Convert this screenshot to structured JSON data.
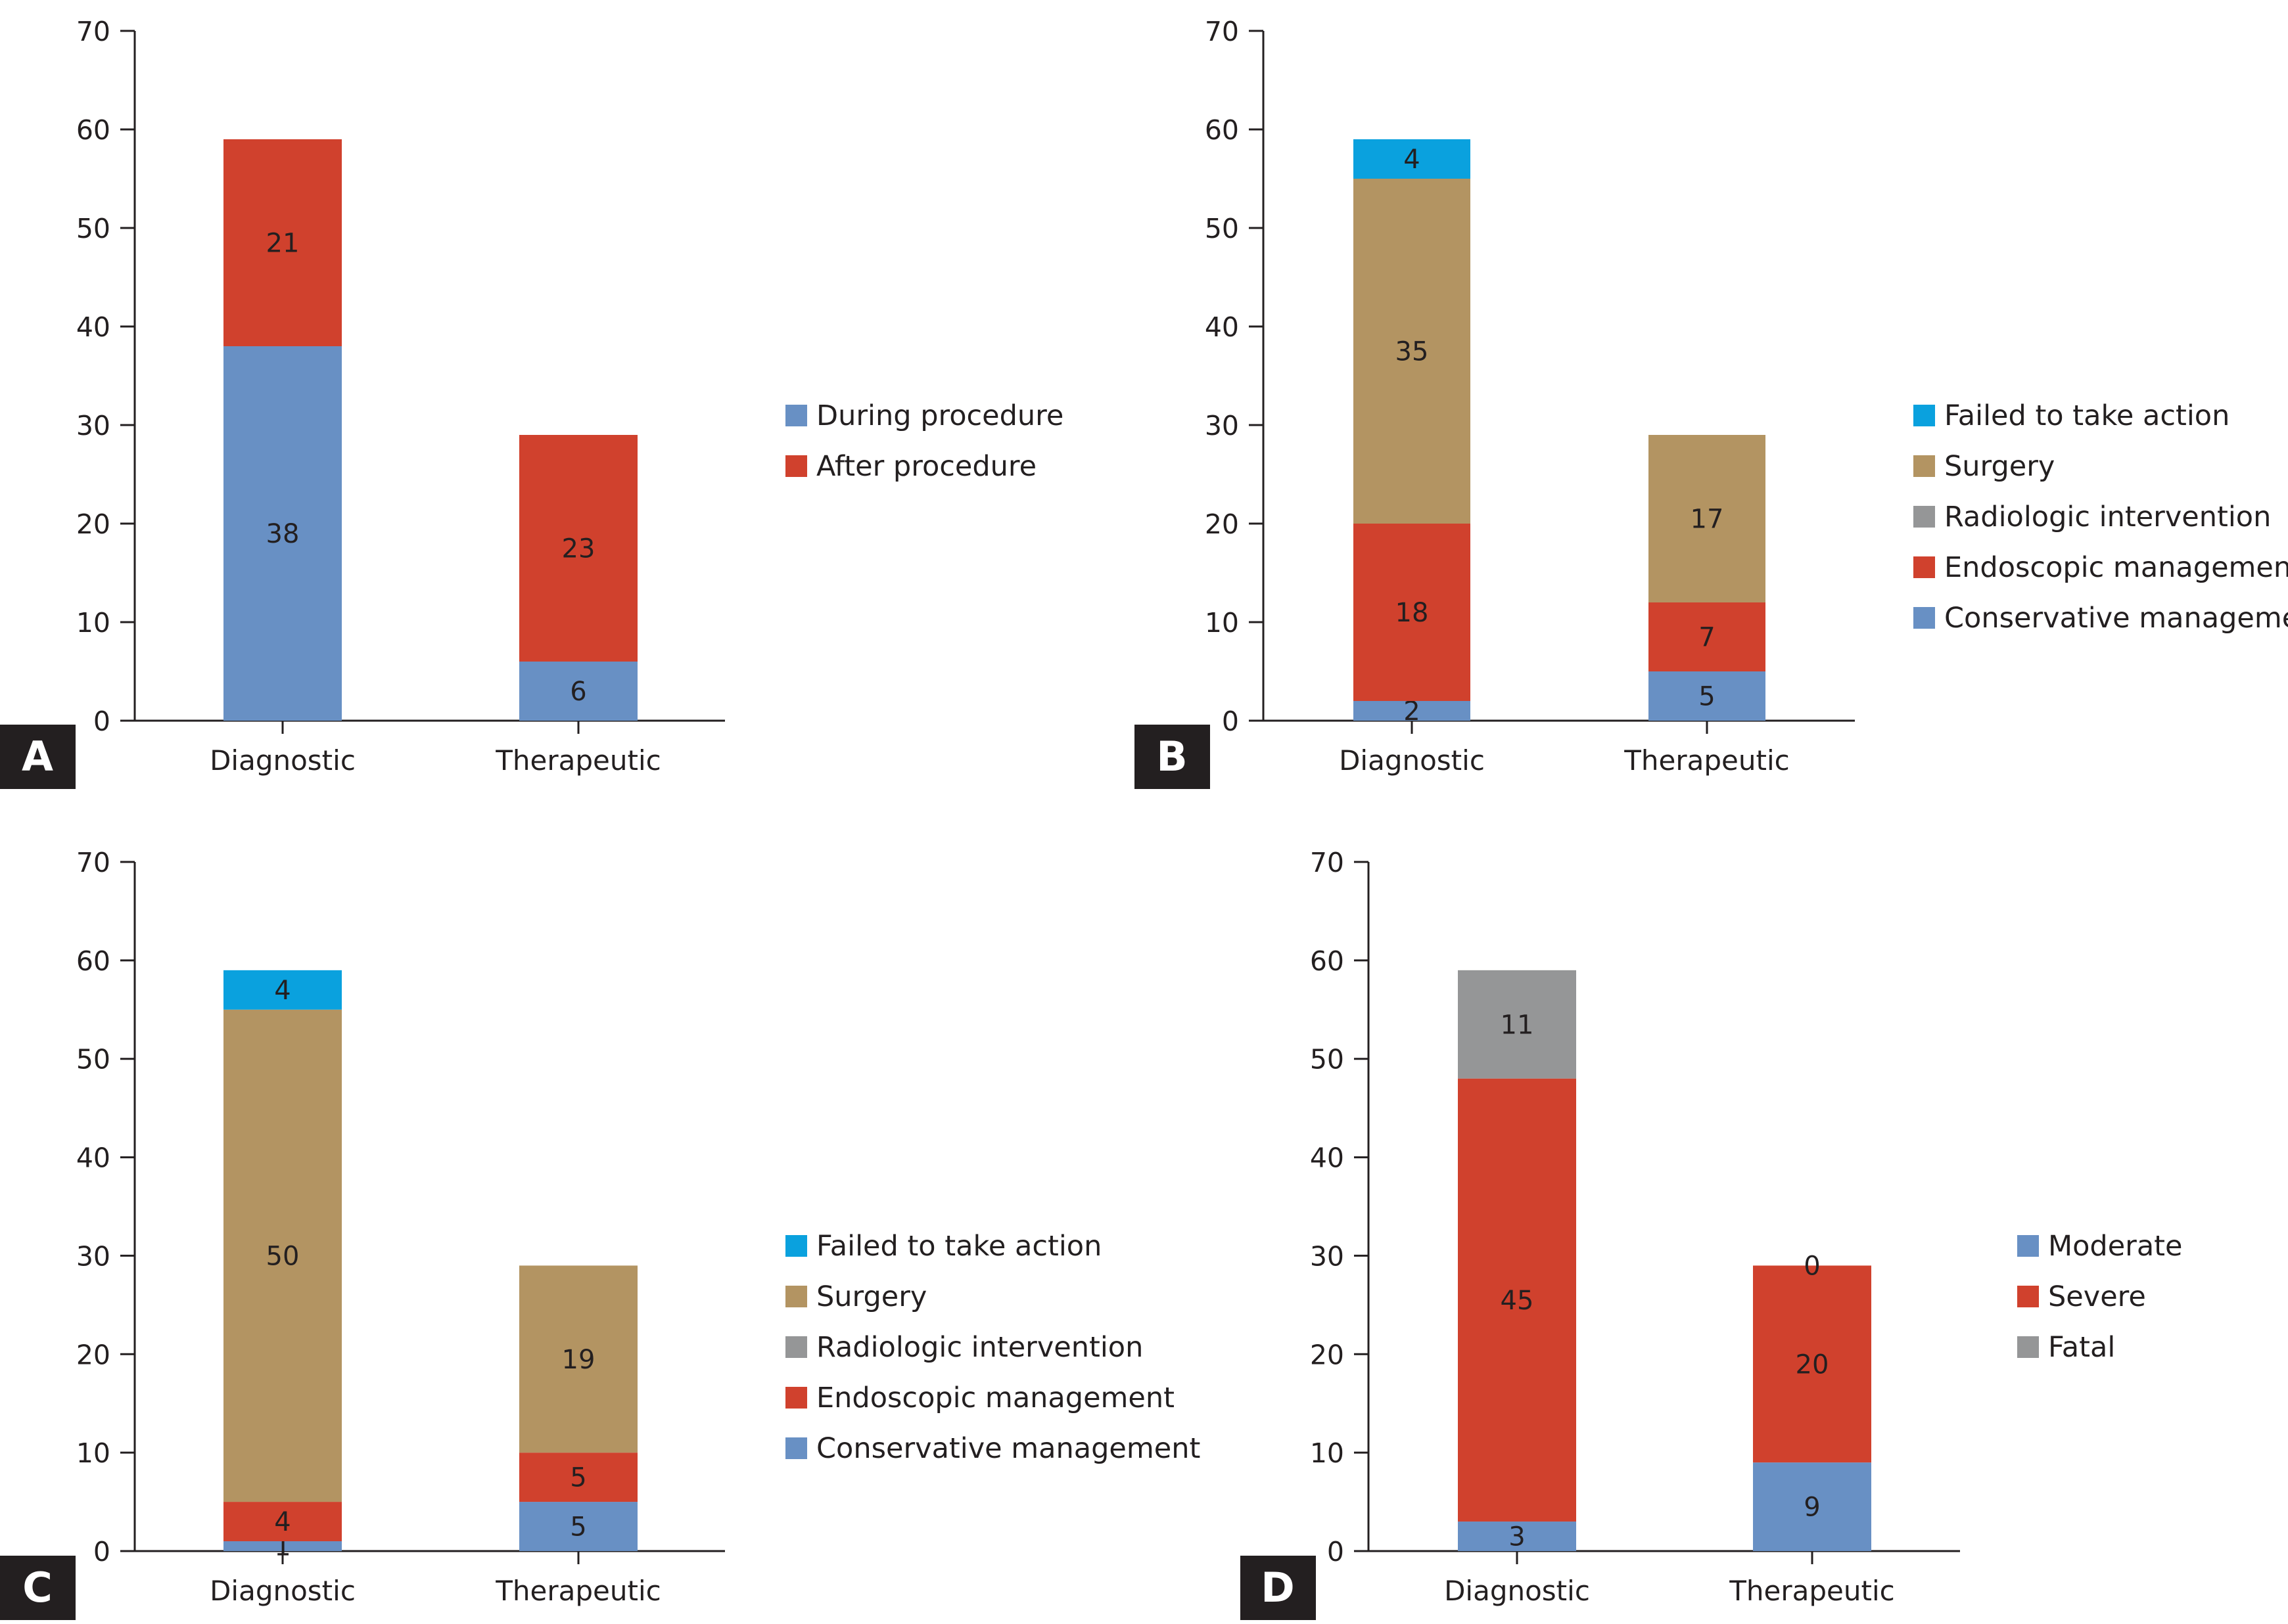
{
  "colors": {
    "blue": "#6890c4",
    "red": "#d0412d",
    "tan": "#b39462",
    "gray": "#959697",
    "cyan": "#0aa1de",
    "axis": "#231f20",
    "text": "#231f20",
    "panel_label_bg": "#231f20",
    "panel_label_fg": "#ffffff"
  },
  "chart_data": [
    {
      "panel": "A",
      "type": "bar",
      "stacked": true,
      "categories": [
        "Diagnostic",
        "Therapeutic"
      ],
      "ylim": [
        0,
        70
      ],
      "yticks": [
        0,
        10,
        20,
        30,
        40,
        50,
        60,
        70
      ],
      "series": [
        {
          "name": "During procedure",
          "color": "blue",
          "values": [
            38,
            6
          ]
        },
        {
          "name": "After procedure",
          "color": "red",
          "values": [
            21,
            23
          ]
        }
      ],
      "legend": [
        "During procedure",
        "After procedure"
      ],
      "legend_colors": [
        "blue",
        "red"
      ]
    },
    {
      "panel": "B",
      "type": "bar",
      "stacked": true,
      "categories": [
        "Diagnostic",
        "Therapeutic"
      ],
      "ylim": [
        0,
        70
      ],
      "yticks": [
        0,
        10,
        20,
        30,
        40,
        50,
        60,
        70
      ],
      "series": [
        {
          "name": "Conservative management",
          "color": "blue",
          "values": [
            2,
            5
          ]
        },
        {
          "name": "Endoscopic management",
          "color": "red",
          "values": [
            18,
            7
          ]
        },
        {
          "name": "Radiologic intervention",
          "color": "gray",
          "values": [
            0,
            0
          ],
          "hide_labels": true
        },
        {
          "name": "Surgery",
          "color": "tan",
          "values": [
            35,
            17
          ]
        },
        {
          "name": "Failed to take action",
          "color": "cyan",
          "values": [
            4,
            0
          ],
          "hide_labels": [
            false,
            true
          ]
        }
      ],
      "legend": [
        "Failed to take action",
        "Surgery",
        "Radiologic intervention",
        "Endoscopic management",
        "Conservative management"
      ],
      "legend_colors": [
        "cyan",
        "tan",
        "gray",
        "red",
        "blue"
      ]
    },
    {
      "panel": "C",
      "type": "bar",
      "stacked": true,
      "categories": [
        "Diagnostic",
        "Therapeutic"
      ],
      "ylim": [
        0,
        70
      ],
      "yticks": [
        0,
        10,
        20,
        30,
        40,
        50,
        60,
        70
      ],
      "series": [
        {
          "name": "Conservative management",
          "color": "blue",
          "values": [
            1,
            5
          ]
        },
        {
          "name": "Endoscopic management",
          "color": "red",
          "values": [
            4,
            5
          ]
        },
        {
          "name": "Radiologic intervention",
          "color": "gray",
          "values": [
            0,
            0
          ],
          "hide_labels": true
        },
        {
          "name": "Surgery",
          "color": "tan",
          "values": [
            50,
            19
          ]
        },
        {
          "name": "Failed to take action",
          "color": "cyan",
          "values": [
            4,
            0
          ],
          "hide_labels": [
            false,
            true
          ]
        }
      ],
      "legend": [
        "Failed to take action",
        "Surgery",
        "Radiologic intervention",
        "Endoscopic management",
        "Conservative management"
      ],
      "legend_colors": [
        "cyan",
        "tan",
        "gray",
        "red",
        "blue"
      ]
    },
    {
      "panel": "D",
      "type": "bar",
      "stacked": true,
      "categories": [
        "Diagnostic",
        "Therapeutic"
      ],
      "ylim": [
        0,
        70
      ],
      "yticks": [
        0,
        10,
        20,
        30,
        40,
        50,
        60,
        70
      ],
      "series": [
        {
          "name": "Moderate",
          "color": "blue",
          "values": [
            3,
            9
          ]
        },
        {
          "name": "Severe",
          "color": "red",
          "values": [
            45,
            20
          ]
        },
        {
          "name": "Fatal",
          "color": "gray",
          "values": [
            11,
            0
          ]
        }
      ],
      "legend": [
        "Moderate",
        "Severe",
        "Fatal"
      ],
      "legend_colors": [
        "blue",
        "red",
        "gray"
      ]
    }
  ]
}
